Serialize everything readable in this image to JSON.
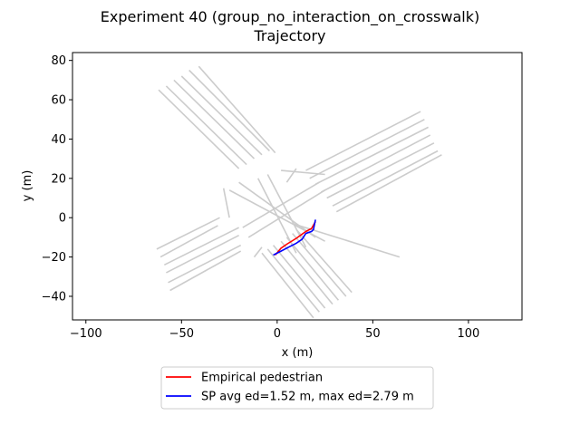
{
  "chart_data": {
    "type": "line",
    "title": "Experiment 40 (group_no_interaction_on_crosswalk)",
    "subtitle": "Trajectory",
    "xlabel": "x (m)",
    "ylabel": "y (m)",
    "xlim": [
      -107,
      128
    ],
    "ylim": [
      -52,
      84
    ],
    "xticks": [
      -100,
      -50,
      0,
      50,
      100
    ],
    "yticks": [
      -40,
      -20,
      0,
      20,
      40,
      60,
      80
    ],
    "grid": false,
    "legend_placement": "bottom-center-outside",
    "series": [
      {
        "name": "Empirical pedestrian",
        "color": "#ff0000",
        "x": [
          -1,
          2,
          5,
          10,
          15,
          18,
          20
        ],
        "y": [
          -19,
          -15.5,
          -13.5,
          -10.5,
          -7,
          -5.5,
          -2
        ]
      },
      {
        "name": "SP avg ed=1.52 m, max ed=2.79 m",
        "color": "#0000ff",
        "x": [
          -2,
          2,
          6,
          10,
          13,
          15,
          18,
          19,
          20
        ],
        "y": [
          -19,
          -17,
          -15,
          -13,
          -11,
          -8,
          -7,
          -6,
          -1
        ]
      }
    ],
    "background": {
      "color": "#cccccc",
      "lines": [
        {
          "x": [
            -63,
            -30
          ],
          "y": [
            -16,
            0
          ]
        },
        {
          "x": [
            -61,
            -31
          ],
          "y": [
            -20,
            -4
          ]
        },
        {
          "x": [
            -59,
            -20
          ],
          "y": [
            -24,
            -5
          ]
        },
        {
          "x": [
            -58,
            -20
          ],
          "y": [
            -28,
            -9
          ]
        },
        {
          "x": [
            -57,
            -19
          ],
          "y": [
            -33,
            -14
          ]
        },
        {
          "x": [
            -56,
            -19
          ],
          "y": [
            -37,
            -17
          ]
        },
        {
          "x": [
            64,
            8
          ],
          "y": [
            -20,
            -3
          ]
        },
        {
          "x": [
            75,
            15
          ],
          "y": [
            54,
            24
          ]
        },
        {
          "x": [
            77,
            17
          ],
          "y": [
            50,
            20
          ]
        },
        {
          "x": [
            79,
            20
          ],
          "y": [
            46,
            17
          ]
        },
        {
          "x": [
            80,
            23
          ],
          "y": [
            42,
            13
          ]
        },
        {
          "x": [
            82,
            26
          ],
          "y": [
            38,
            10
          ]
        },
        {
          "x": [
            84,
            29
          ],
          "y": [
            34,
            6
          ]
        },
        {
          "x": [
            86,
            31
          ],
          "y": [
            32,
            3
          ]
        },
        {
          "x": [
            -62,
            -20
          ],
          "y": [
            65,
            25
          ]
        },
        {
          "x": [
            -58,
            -16
          ],
          "y": [
            67,
            27
          ]
        },
        {
          "x": [
            -54,
            -12
          ],
          "y": [
            70,
            30
          ]
        },
        {
          "x": [
            -50,
            -8
          ],
          "y": [
            72,
            32
          ]
        },
        {
          "x": [
            -46,
            -4
          ],
          "y": [
            75,
            34
          ]
        },
        {
          "x": [
            -41,
            -1
          ],
          "y": [
            77,
            33
          ]
        },
        {
          "x": [
            19,
            -8
          ],
          "y": [
            -51,
            -18
          ]
        },
        {
          "x": [
            22,
            -5
          ],
          "y": [
            -48,
            -16
          ]
        },
        {
          "x": [
            25,
            -2
          ],
          "y": [
            -46,
            -14
          ]
        },
        {
          "x": [
            29,
            2
          ],
          "y": [
            -44,
            -12
          ]
        },
        {
          "x": [
            32,
            5
          ],
          "y": [
            -42,
            -10
          ]
        },
        {
          "x": [
            36,
            8
          ],
          "y": [
            -40,
            -8
          ]
        },
        {
          "x": [
            39,
            10
          ],
          "y": [
            -38,
            -6
          ]
        },
        {
          "x": [
            -20,
            20
          ],
          "y": [
            18,
            -10
          ]
        },
        {
          "x": [
            -25,
            25
          ],
          "y": [
            14,
            -12
          ]
        },
        {
          "x": [
            -18,
            22
          ],
          "y": [
            -5,
            18
          ]
        },
        {
          "x": [
            -15,
            25
          ],
          "y": [
            -10,
            14
          ]
        },
        {
          "x": [
            -10,
            10
          ],
          "y": [
            20,
            -18
          ]
        },
        {
          "x": [
            -5,
            15
          ],
          "y": [
            22,
            -15
          ]
        },
        {
          "x": [
            -28,
            -25
          ],
          "y": [
            15,
            0
          ]
        },
        {
          "x": [
            2,
            25
          ],
          "y": [
            24,
            22
          ]
        },
        {
          "x": [
            5,
            10
          ],
          "y": [
            18,
            25
          ]
        },
        {
          "x": [
            -12,
            -8
          ],
          "y": [
            -20,
            -15
          ]
        }
      ]
    }
  }
}
